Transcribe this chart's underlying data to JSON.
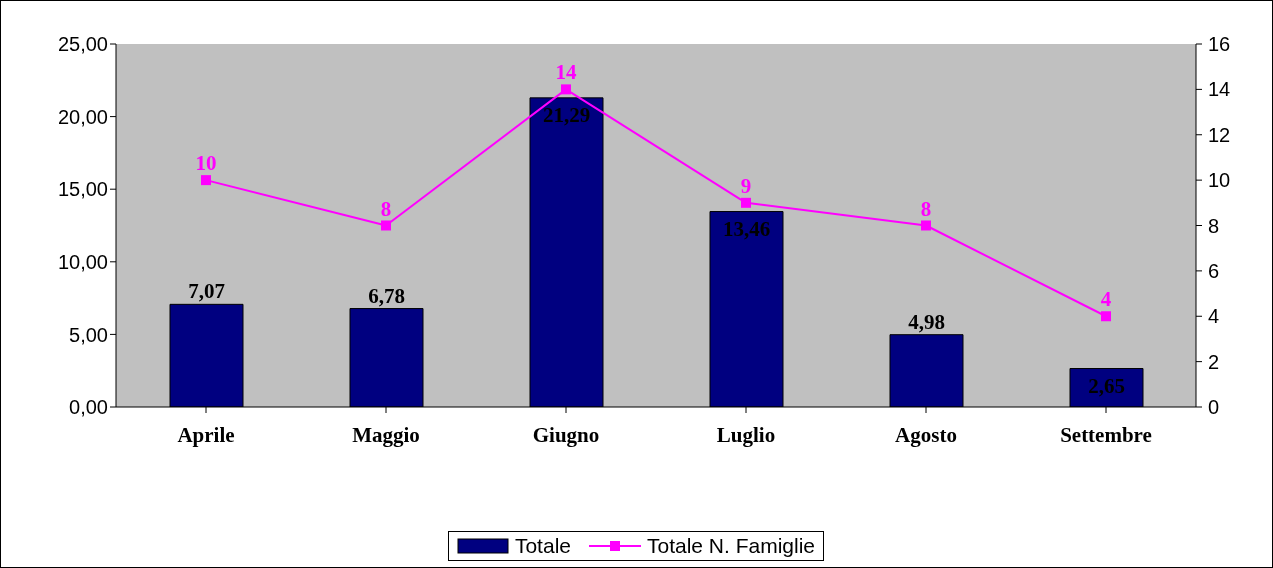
{
  "chart_data": {
    "type": "bar",
    "categories": [
      "Aprile",
      "Maggio",
      "Giugno",
      "Luglio",
      "Agosto",
      "Settembre"
    ],
    "series": [
      {
        "name": "Totale",
        "color": "#000080",
        "values": [
          7.07,
          6.78,
          21.29,
          13.46,
          4.98,
          2.65
        ],
        "value_labels": [
          "7,07",
          "6,78",
          "21,29",
          "13,46",
          "4,98",
          "2,65"
        ]
      },
      {
        "name": "Totale N. Famiglie",
        "type": "line",
        "axis": "y2",
        "color": "#ff00ff",
        "marker": "square",
        "values": [
          10,
          8,
          14,
          9,
          8,
          4
        ],
        "value_labels": [
          "10",
          "8",
          "14",
          "9",
          "8",
          "4"
        ]
      }
    ],
    "ylim": [
      0,
      25
    ],
    "yticks": [
      {
        "value": 0,
        "label": "0,00"
      },
      {
        "value": 5,
        "label": "5,00"
      },
      {
        "value": 10,
        "label": "10,00"
      },
      {
        "value": 15,
        "label": "15,00"
      },
      {
        "value": 20,
        "label": "20,00"
      },
      {
        "value": 25,
        "label": "25,00"
      }
    ],
    "y2lim": [
      0,
      16
    ],
    "y2ticks": [
      0,
      2,
      4,
      6,
      8,
      10,
      12,
      14,
      16
    ],
    "grid": false,
    "legend": "bottom"
  }
}
